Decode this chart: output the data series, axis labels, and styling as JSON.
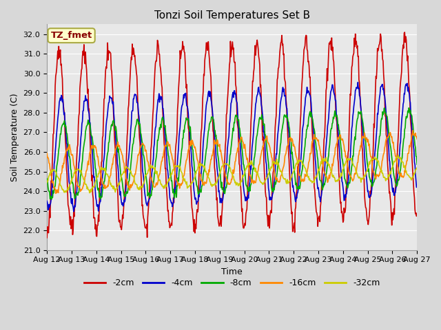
{
  "title": "Tonzi Soil Temperatures Set B",
  "xlabel": "Time",
  "ylabel": "Soil Temperature (C)",
  "ylim": [
    21.0,
    32.5
  ],
  "yticks": [
    21.0,
    22.0,
    23.0,
    24.0,
    25.0,
    26.0,
    27.0,
    28.0,
    29.0,
    30.0,
    31.0,
    32.0
  ],
  "x_tick_labels": [
    "Aug 12",
    "Aug 13",
    "Aug 14",
    "Aug 15",
    "Aug 16",
    "Aug 17",
    "Aug 18",
    "Aug 19",
    "Aug 20",
    "Aug 21",
    "Aug 22",
    "Aug 23",
    "Aug 24",
    "Aug 25",
    "Aug 26",
    "Aug 27"
  ],
  "series_order": [
    "-2cm",
    "-4cm",
    "-8cm",
    "-16cm",
    "-32cm"
  ],
  "series": {
    "-2cm": {
      "color": "#cc0000",
      "lw": 1.2
    },
    "-4cm": {
      "color": "#0000cc",
      "lw": 1.2
    },
    "-8cm": {
      "color": "#00aa00",
      "lw": 1.2
    },
    "-16cm": {
      "color": "#ff8800",
      "lw": 1.2
    },
    "-32cm": {
      "color": "#cccc00",
      "lw": 1.2
    }
  },
  "legend_labels": [
    "-2cm",
    "-4cm",
    "-8cm",
    "-16cm",
    "-32cm"
  ],
  "legend_colors": [
    "#cc0000",
    "#0000cc",
    "#00aa00",
    "#ff8800",
    "#cccc00"
  ],
  "annotation_text": "TZ_fmet",
  "annotation_color": "#880000",
  "annotation_bgcolor": "#ffffcc",
  "annotation_edgecolor": "#aaaa44",
  "fig_bg_color": "#d8d8d8",
  "plot_bg_color": "#e8e8e8",
  "grid_color": "#ffffff",
  "title_fontsize": 11,
  "label_fontsize": 9,
  "tick_fontsize": 8
}
